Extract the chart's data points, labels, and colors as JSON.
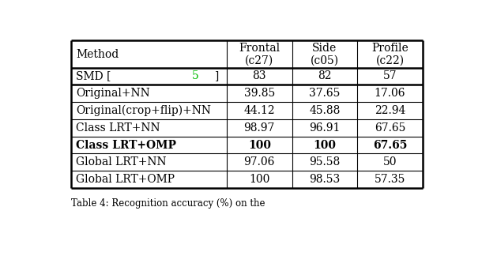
{
  "col_headers": [
    "Method",
    "Frontal\n(c27)",
    "Side\n(c05)",
    "Profile\n(c22)"
  ],
  "smd_row": [
    "SMD [5]",
    "83",
    "82",
    "57"
  ],
  "smd_citation_color": "#00bb00",
  "main_rows": [
    [
      "Original+NN",
      "39.85",
      "37.65",
      "17.06"
    ],
    [
      "Original(crop+flip)+NN",
      "44.12",
      "45.88",
      "22.94"
    ],
    [
      "Class LRT+NN",
      "98.97",
      "96.91",
      "67.65"
    ],
    [
      "Class LRT+OMP",
      "100",
      "100",
      "67.65"
    ],
    [
      "Global LRT+NN",
      "97.06",
      "95.58",
      "50"
    ],
    [
      "Global LRT+OMP",
      "100",
      "98.53",
      "57.35"
    ]
  ],
  "bold_row_idx": 3,
  "background_color": "#ffffff",
  "font_size": 10,
  "fig_width": 6.1,
  "fig_height": 3.24,
  "caption": "Table 4: Recognition accuracy (%) on the"
}
